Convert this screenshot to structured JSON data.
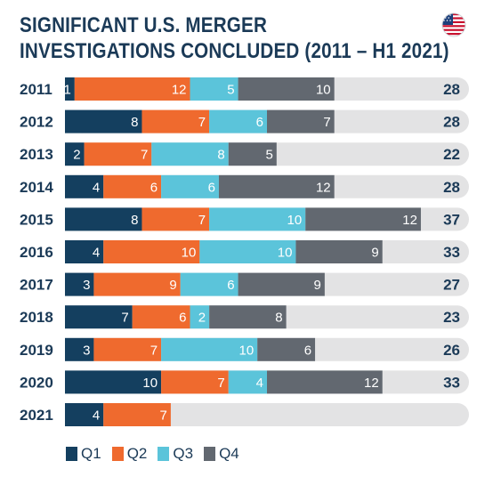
{
  "header": {
    "title_line1": "SIGNIFICANT U.S. MERGER",
    "title_line2": "INVESTIGATIONS CONCLUDED (2011 – H1 2021)",
    "flag_icon": "us-flag-icon"
  },
  "colors": {
    "Q1": "#143f5f",
    "Q2": "#ef6a2e",
    "Q3": "#5bc4da",
    "Q4": "#626870",
    "track": "#e3e3e4",
    "text": "#1b3a57"
  },
  "chart_data": {
    "type": "bar",
    "orientation": "horizontal",
    "stacked": true,
    "categories": [
      "2011",
      "2012",
      "2013",
      "2014",
      "2015",
      "2016",
      "2017",
      "2018",
      "2019",
      "2020",
      "2021"
    ],
    "series": [
      {
        "name": "Q1",
        "values": [
          1,
          8,
          2,
          4,
          8,
          4,
          3,
          7,
          3,
          10,
          4
        ]
      },
      {
        "name": "Q2",
        "values": [
          12,
          7,
          7,
          6,
          7,
          10,
          9,
          6,
          7,
          7,
          7
        ]
      },
      {
        "name": "Q3",
        "values": [
          5,
          6,
          8,
          6,
          10,
          10,
          6,
          2,
          10,
          4,
          null
        ]
      },
      {
        "name": "Q4",
        "values": [
          10,
          7,
          5,
          12,
          12,
          9,
          9,
          8,
          6,
          12,
          null
        ]
      }
    ],
    "totals": [
      "28",
      "28",
      "22",
      "28",
      "37",
      "33",
      "27",
      "23",
      "26",
      "33",
      ""
    ],
    "xlim": [
      0,
      42
    ],
    "legend_position": "bottom-left",
    "grid": false
  }
}
